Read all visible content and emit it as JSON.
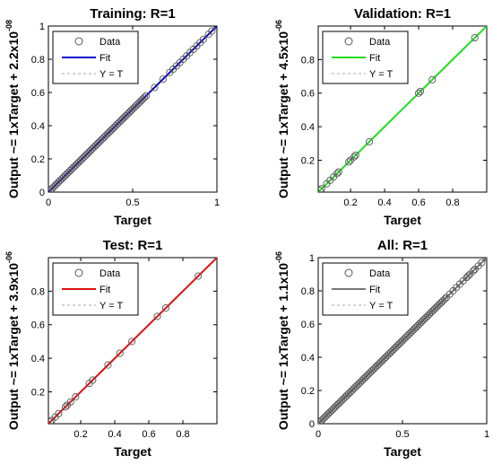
{
  "chart_data": [
    {
      "type": "scatter",
      "title": "Training: R=1",
      "xlabel": "Target",
      "ylabel": {
        "main": "Output ~= 1xTarget + 2.2x10",
        "exponent": "-08"
      },
      "xlim": [
        0,
        1
      ],
      "ylim": [
        0,
        1
      ],
      "xticks": [
        0,
        0.5,
        1
      ],
      "yticks": [
        0,
        0.2,
        0.4,
        0.6,
        0.8,
        1
      ],
      "grid": false,
      "legend_position": "top-left",
      "legend": [
        "Data",
        "Fit",
        "Y = T"
      ],
      "fit_color": "#0000cc",
      "fit": {
        "slope": 1,
        "intercept": 0
      },
      "points": [
        0,
        0.01,
        0.02,
        0.03,
        0.04,
        0.05,
        0.06,
        0.07,
        0.08,
        0.09,
        0.1,
        0.11,
        0.12,
        0.13,
        0.14,
        0.15,
        0.16,
        0.17,
        0.18,
        0.19,
        0.2,
        0.21,
        0.22,
        0.23,
        0.24,
        0.25,
        0.26,
        0.27,
        0.28,
        0.29,
        0.3,
        0.31,
        0.32,
        0.33,
        0.34,
        0.35,
        0.36,
        0.37,
        0.38,
        0.39,
        0.4,
        0.41,
        0.42,
        0.43,
        0.44,
        0.45,
        0.46,
        0.47,
        0.48,
        0.49,
        0.5,
        0.51,
        0.52,
        0.53,
        0.54,
        0.55,
        0.56,
        0.57,
        0.58,
        0.63,
        0.68,
        0.72,
        0.74,
        0.76,
        0.78,
        0.8,
        0.82,
        0.84,
        0.86,
        0.88,
        0.9,
        0.92,
        0.95,
        0.97,
        1
      ]
    },
    {
      "type": "scatter",
      "title": "Validation: R=1",
      "xlabel": "Target",
      "ylabel": {
        "main": "Output ~= 1xTarget + 4.5x10",
        "exponent": "-06"
      },
      "xlim": [
        0.01,
        1
      ],
      "ylim": [
        0.01,
        1
      ],
      "xticks": [
        0.2,
        0.4,
        0.6,
        0.8
      ],
      "yticks": [
        0.2,
        0.4,
        0.6,
        0.8
      ],
      "grid": false,
      "legend_position": "top-left",
      "legend": [
        "Data",
        "Fit",
        "Y = T"
      ],
      "fit_color": "#22dd22",
      "fit": {
        "slope": 1,
        "intercept": 0
      },
      "points": [
        0.02,
        0.03,
        0.06,
        0.08,
        0.1,
        0.12,
        0.13,
        0.19,
        0.2,
        0.22,
        0.23,
        0.31,
        0.6,
        0.61,
        0.68,
        0.93
      ]
    },
    {
      "type": "scatter",
      "title": "Test: R=1",
      "xlabel": "Target",
      "ylabel": {
        "main": "Output ~= 1xTarget + 3.9x10",
        "exponent": "-06"
      },
      "xlim": [
        0.01,
        1
      ],
      "ylim": [
        0.01,
        1
      ],
      "xticks": [
        0.2,
        0.4,
        0.6,
        0.8
      ],
      "yticks": [
        0.2,
        0.4,
        0.6,
        0.8
      ],
      "grid": false,
      "legend_position": "top-left",
      "legend": [
        "Data",
        "Fit",
        "Y = T"
      ],
      "fit_color": "#dd1111",
      "fit": {
        "slope": 1,
        "intercept": 0
      },
      "points": [
        0.02,
        0.03,
        0.05,
        0.07,
        0.11,
        0.12,
        0.14,
        0.17,
        0.25,
        0.27,
        0.36,
        0.43,
        0.5,
        0.65,
        0.7,
        0.89
      ]
    },
    {
      "type": "scatter",
      "title": "All: R=1",
      "xlabel": "Target",
      "ylabel": {
        "main": "Output ~= 1xTarget + 1.1x10",
        "exponent": "-06"
      },
      "xlim": [
        0,
        1
      ],
      "ylim": [
        0,
        1
      ],
      "xticks": [
        0,
        0.5,
        1
      ],
      "yticks": [
        0,
        0.2,
        0.4,
        0.6,
        0.8,
        1
      ],
      "grid": false,
      "legend_position": "top-left",
      "legend": [
        "Data",
        "Fit",
        "Y = T"
      ],
      "fit_color": "#777777",
      "fit": {
        "slope": 1,
        "intercept": 0
      },
      "points": [
        0,
        0.01,
        0.02,
        0.03,
        0.04,
        0.05,
        0.06,
        0.07,
        0.08,
        0.09,
        0.1,
        0.11,
        0.12,
        0.13,
        0.14,
        0.15,
        0.16,
        0.17,
        0.18,
        0.19,
        0.2,
        0.21,
        0.22,
        0.23,
        0.24,
        0.25,
        0.26,
        0.27,
        0.28,
        0.29,
        0.3,
        0.31,
        0.32,
        0.33,
        0.34,
        0.35,
        0.36,
        0.37,
        0.38,
        0.39,
        0.4,
        0.41,
        0.42,
        0.43,
        0.44,
        0.45,
        0.46,
        0.47,
        0.48,
        0.49,
        0.5,
        0.51,
        0.52,
        0.53,
        0.54,
        0.55,
        0.56,
        0.57,
        0.58,
        0.59,
        0.6,
        0.61,
        0.62,
        0.63,
        0.64,
        0.65,
        0.66,
        0.67,
        0.68,
        0.69,
        0.7,
        0.71,
        0.72,
        0.73,
        0.74,
        0.75,
        0.76,
        0.78,
        0.8,
        0.82,
        0.84,
        0.86,
        0.88,
        0.89,
        0.9,
        0.92,
        0.93,
        0.95,
        0.97,
        1
      ]
    }
  ]
}
